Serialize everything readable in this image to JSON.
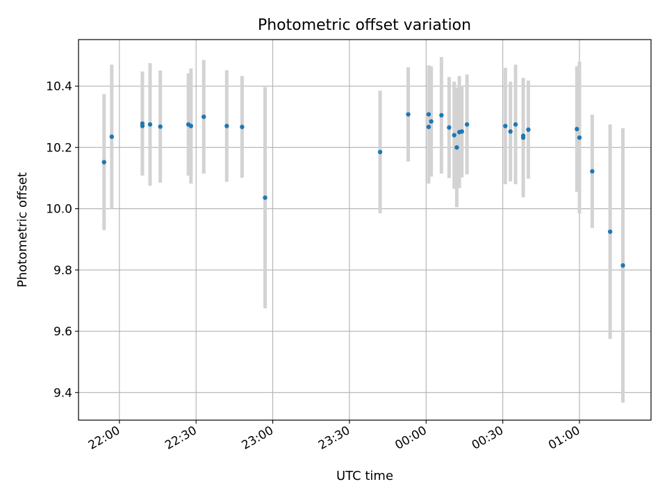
{
  "chart_data": {
    "type": "scatter",
    "title": "Photometric offset variation",
    "xlabel": "UTC time",
    "ylabel": "Photometric offset",
    "grid": true,
    "xlim": [
      "21:44",
      "01:28"
    ],
    "ylim": [
      9.31,
      10.552
    ],
    "x_ticks": [
      "22:00",
      "22:30",
      "23:00",
      "23:30",
      "00:00",
      "00:30",
      "01:00"
    ],
    "y_ticks": [
      9.4,
      9.6,
      9.8,
      10.0,
      10.2,
      10.4
    ],
    "y_tick_labels": [
      "9.4",
      "9.6",
      "9.8",
      "10.0",
      "10.2",
      "10.4"
    ],
    "marker_color": "#1f77b4",
    "errorbar_color": "#d3d3d3",
    "points": [
      {
        "x": "21:54",
        "y": 10.152,
        "err": 0.222
      },
      {
        "x": "21:57",
        "y": 10.235,
        "err": 0.235
      },
      {
        "x": "22:09",
        "y": 10.27,
        "err": 0.16
      },
      {
        "x": "22:09",
        "y": 10.278,
        "err": 0.17
      },
      {
        "x": "22:12",
        "y": 10.275,
        "err": 0.2
      },
      {
        "x": "22:16",
        "y": 10.268,
        "err": 0.183
      },
      {
        "x": "22:27",
        "y": 10.275,
        "err": 0.167
      },
      {
        "x": "22:28",
        "y": 10.27,
        "err": 0.188
      },
      {
        "x": "22:33",
        "y": 10.3,
        "err": 0.185
      },
      {
        "x": "22:42",
        "y": 10.27,
        "err": 0.182
      },
      {
        "x": "22:48",
        "y": 10.267,
        "err": 0.166
      },
      {
        "x": "22:57",
        "y": 10.036,
        "err": 0.361
      },
      {
        "x": "23:42",
        "y": 10.185,
        "err": 0.2
      },
      {
        "x": "23:53",
        "y": 10.308,
        "err": 0.154
      },
      {
        "x": "00:01",
        "y": 10.308,
        "err": 0.16
      },
      {
        "x": "00:01",
        "y": 10.267,
        "err": 0.185
      },
      {
        "x": "00:02",
        "y": 10.285,
        "err": 0.18
      },
      {
        "x": "00:06",
        "y": 10.305,
        "err": 0.19
      },
      {
        "x": "00:09",
        "y": 10.265,
        "err": 0.165
      },
      {
        "x": "00:11",
        "y": 10.24,
        "err": 0.175
      },
      {
        "x": "00:12",
        "y": 10.2,
        "err": 0.195
      },
      {
        "x": "00:13",
        "y": 10.25,
        "err": 0.183
      },
      {
        "x": "00:14",
        "y": 10.252,
        "err": 0.15
      },
      {
        "x": "00:16",
        "y": 10.275,
        "err": 0.163
      },
      {
        "x": "00:31",
        "y": 10.27,
        "err": 0.19
      },
      {
        "x": "00:33",
        "y": 10.252,
        "err": 0.163
      },
      {
        "x": "00:35",
        "y": 10.275,
        "err": 0.195
      },
      {
        "x": "00:38",
        "y": 10.238,
        "err": 0.178
      },
      {
        "x": "00:38",
        "y": 10.232,
        "err": 0.195
      },
      {
        "x": "00:40",
        "y": 10.258,
        "err": 0.16
      },
      {
        "x": "00:59",
        "y": 10.26,
        "err": 0.205
      },
      {
        "x": "01:00",
        "y": 10.232,
        "err": 0.248
      },
      {
        "x": "01:05",
        "y": 10.122,
        "err": 0.185
      },
      {
        "x": "01:12",
        "y": 9.925,
        "err": 0.35
      },
      {
        "x": "01:17",
        "y": 9.815,
        "err": 0.448
      }
    ]
  }
}
